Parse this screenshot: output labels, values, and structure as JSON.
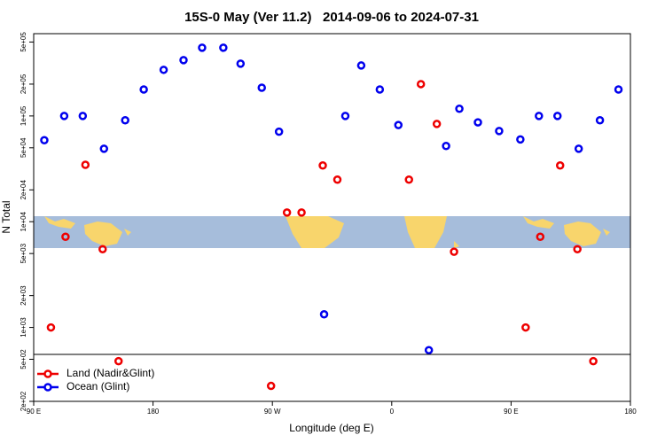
{
  "chart_data": {
    "type": "scatter",
    "title": "15S-0 May (Ver 11.2)   2014-09-06 to 2024-07-31",
    "xlabel": "Longitude (deg E)",
    "ylabel": "N Total",
    "log_y": true,
    "legend": "bottomleft",
    "xlim": [
      90,
      540
    ],
    "xticks": [
      {
        "value": 90,
        "label": "90 E"
      },
      {
        "value": 180,
        "label": "180"
      },
      {
        "value": 270,
        "label": "90 W"
      },
      {
        "value": 360,
        "label": "0"
      },
      {
        "value": 450,
        "label": "90 E"
      },
      {
        "value": 540,
        "label": "180"
      }
    ],
    "ylim": [
      200,
      600000
    ],
    "yticks": [
      {
        "value": 200,
        "label": "2e+02"
      },
      {
        "value": 500,
        "label": "5e+02"
      },
      {
        "value": 1000,
        "label": "1e+03"
      },
      {
        "value": 2000,
        "label": "2e+03"
      },
      {
        "value": 5000,
        "label": "5e+03"
      },
      {
        "value": 10000,
        "label": "1e+04"
      },
      {
        "value": 20000,
        "label": "2e+04"
      },
      {
        "value": 50000,
        "label": "5e+04"
      },
      {
        "value": 100000,
        "label": "1e+05"
      },
      {
        "value": 200000,
        "label": "2e+05"
      },
      {
        "value": 500000,
        "label": "5e+05"
      }
    ],
    "series": [
      {
        "name": "Land (Nadir&Glint)",
        "color": "#ee0000",
        "x": [
          103,
          114,
          129,
          142,
          154,
          269,
          281,
          292,
          308,
          319,
          373,
          382,
          394,
          407,
          461,
          472,
          487,
          500,
          512
        ],
        "values": [
          1000,
          7200,
          34500,
          5500,
          480,
          280,
          12200,
          12200,
          34000,
          25000,
          25000,
          200000,
          84000,
          5200,
          1000,
          7200,
          34000,
          5500,
          480
        ]
      },
      {
        "name": "Ocean (Glint)",
        "color": "#0000ee",
        "x": [
          98,
          113,
          127,
          143,
          159,
          173,
          188,
          203,
          217,
          233,
          246,
          262,
          275,
          309,
          325,
          337,
          351,
          365,
          388,
          401,
          411,
          425,
          441,
          457,
          471,
          485,
          501,
          517,
          531
        ],
        "values": [
          59000,
          100000,
          100000,
          49000,
          91000,
          178000,
          273000,
          337000,
          442000,
          442000,
          312000,
          185000,
          71000,
          1330,
          100000,
          300000,
          178000,
          82000,
          610,
          52000,
          117000,
          87000,
          72000,
          60000,
          100000,
          100000,
          49000,
          91000,
          178000
        ]
      }
    ]
  }
}
